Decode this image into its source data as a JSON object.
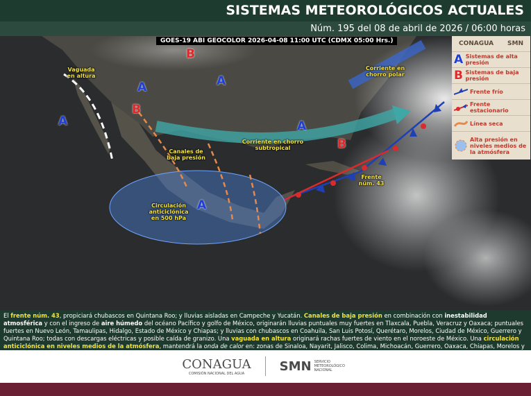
{
  "header": {
    "title": "SISTEMAS METEOROLÓGICOS ACTUALES",
    "subtitle": "Núm. 195 del 08 de abril de 2026 / 06:00 horas"
  },
  "map": {
    "caption": "GOES-19 ABI GEOCOLOR 2026-04-08 11:00 UTC (CDMX  05:00 Hrs.)",
    "markers": [
      {
        "letter": "B",
        "kind": "low"
      },
      {
        "letter": "A",
        "kind": "high"
      },
      {
        "letter": "A",
        "kind": "high"
      },
      {
        "letter": "B",
        "kind": "low"
      },
      {
        "letter": "A",
        "kind": "high"
      },
      {
        "letter": "A",
        "kind": "high"
      },
      {
        "letter": "B",
        "kind": "low"
      },
      {
        "letter": "A",
        "kind": "high"
      }
    ],
    "labels": [
      "Vaguada en altura",
      "Corriente en chorro polar",
      "Canales de baja presión",
      "Corriente en chorro subtropical",
      "Frente núm. 43",
      "Circulación anticiclónica en 500 hPa"
    ]
  },
  "legend": {
    "logos": [
      "CONAGUA",
      "SMN"
    ],
    "items": [
      {
        "symbol": "A",
        "label": "Sistemas de alta presión"
      },
      {
        "symbol": "B",
        "label": "Sistemas de baja presión"
      },
      {
        "label": "Frente frío"
      },
      {
        "label": "Frente estacionario"
      },
      {
        "label": "Línea seca"
      },
      {
        "label": "Alta presión en niveles medios de la atmósfera"
      }
    ]
  },
  "text": {
    "segments": [
      {
        "text": "El "
      },
      {
        "text": "frente núm. 43",
        "style": "hl"
      },
      {
        "text": ", propiciará chubascos en Quintana Roo; y lluvias aisladas en Campeche y Yucatán. "
      },
      {
        "text": "Canales de baja presión",
        "style": "hl"
      },
      {
        "text": " en combinación con "
      },
      {
        "text": "inestabilidad atmosférica",
        "style": "b"
      },
      {
        "text": " y con el ingreso de "
      },
      {
        "text": "aire húmedo",
        "style": "b"
      },
      {
        "text": " del océano Pacífico y golfo de México, originarán lluvias puntuales muy fuertes en Tlaxcala, Puebla, Veracruz y Oaxaca; puntuales fuertes en Nuevo León, Tamaulipas, Hidalgo, Estado de México y Chiapas; y lluvias con chubascos en Coahuila, San Luis Potosí, Querétaro, Morelos, Ciudad de México, Guerrero y Quintana Roo; todas con descargas eléctricas y posible caída de granizo. Una "
      },
      {
        "text": "vaguada en altura",
        "style": "hl"
      },
      {
        "text": " originará rachas fuertes de viento en el noroeste de México. Una "
      },
      {
        "text": "circulación anticiclónica en niveles medios de la atmósfera",
        "style": "hl"
      },
      {
        "text": ", mantendrá la "
      },
      {
        "text": "onda de calor",
        "style": "i"
      },
      {
        "text": " en: zonas de Sinaloa, Nayarit, Jalisco, Colima, Michoacán, Guerrero, Oaxaca, Chiapas, Morelos y Puebla."
      }
    ]
  },
  "footer": {
    "conagua": "CONAGUA",
    "conagua_sub": "COMISIÓN NACIONAL DEL AGUA",
    "smn": "SMN",
    "smn_sub": "SERVICIO METEOROLÓGICO NACIONAL"
  }
}
